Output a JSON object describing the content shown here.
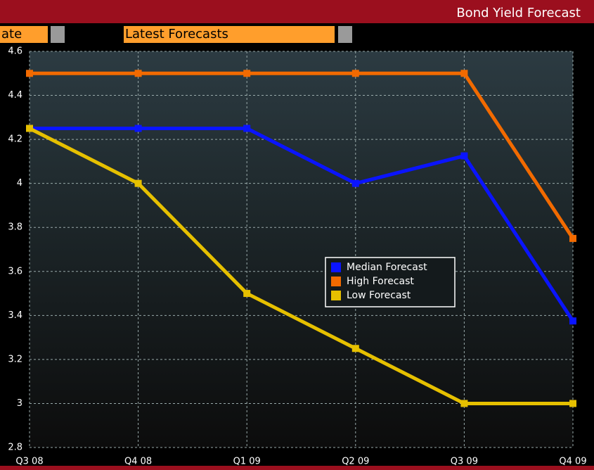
{
  "header": {
    "title": "Bond Yield Forecast"
  },
  "fields": [
    "ate",
    "Latest Forecasts"
  ],
  "chart_data": {
    "type": "line",
    "categories": [
      "Q3 08",
      "Q4 08",
      "Q1 09",
      "Q2 09",
      "Q3 09",
      "Q4 09"
    ],
    "series": [
      {
        "name": "Median Forecast",
        "color": "#0a14ff",
        "values": [
          4.25,
          4.25,
          4.25,
          4.0,
          4.125,
          3.375
        ]
      },
      {
        "name": "High Forecast",
        "color": "#f26a00",
        "values": [
          4.5,
          4.5,
          4.5,
          4.5,
          4.5,
          3.75
        ]
      },
      {
        "name": "Low Forecast",
        "color": "#e6c000",
        "values": [
          4.25,
          4.0,
          3.5,
          3.25,
          3.0,
          3.0
        ]
      }
    ],
    "ylim": [
      2.8,
      4.6
    ],
    "yticks": [
      2.8,
      3,
      3.2,
      3.4,
      3.6,
      3.8,
      4,
      4.2,
      4.4,
      4.6
    ],
    "grid": true
  }
}
